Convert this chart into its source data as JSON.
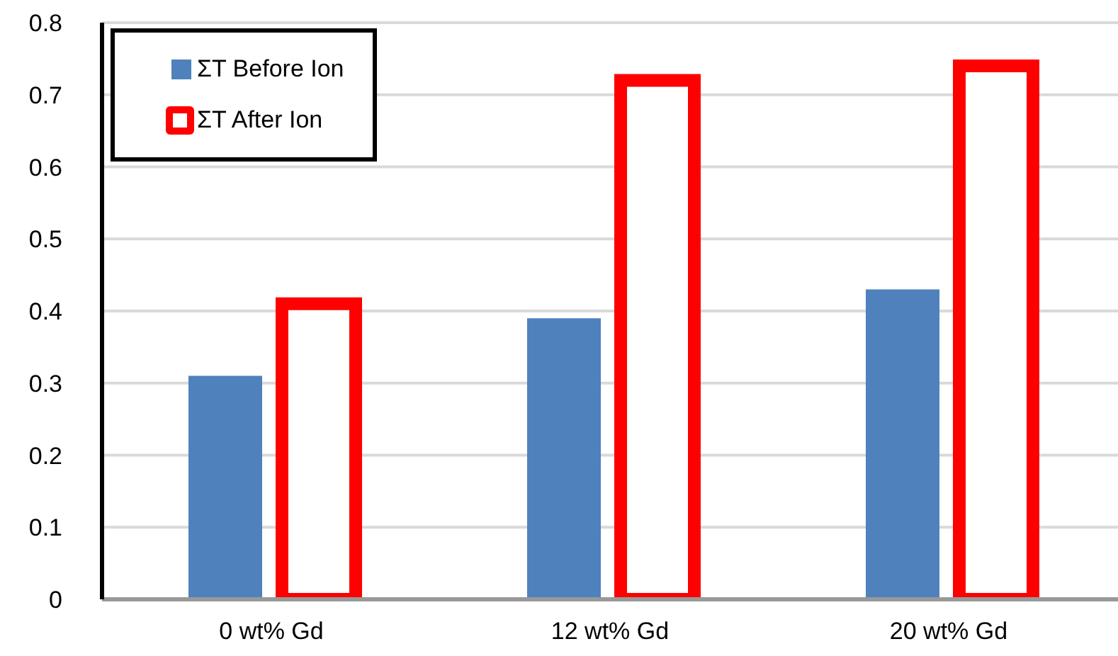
{
  "chart_data": {
    "type": "bar",
    "categories": [
      "0 wt% Gd",
      "12 wt% Gd",
      "20 wt% Gd"
    ],
    "series": [
      {
        "name": "ΣT Before Ion",
        "color": "#4f81bd",
        "values": [
          0.31,
          0.39,
          0.43
        ]
      },
      {
        "name": "ΣT After Ion",
        "color": "#ff0000",
        "values": [
          0.41,
          0.72,
          0.74
        ]
      }
    ],
    "ylim": [
      0,
      0.8
    ],
    "yticks": [
      0,
      0.1,
      0.2,
      0.3,
      0.4,
      0.5,
      0.6,
      0.7,
      0.8
    ],
    "grid": "y",
    "legend": "top left"
  }
}
